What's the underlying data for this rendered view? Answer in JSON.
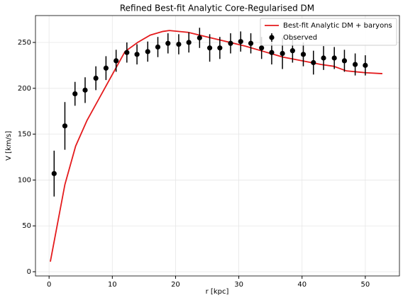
{
  "chart_data": {
    "type": "line",
    "title": "Refined Best-fit Analytic Core-Regularised DM",
    "xlabel": "r [kpc]",
    "ylabel": "V [km/s]",
    "xlim": [
      -2.15,
      55.4
    ],
    "ylim": [
      -4.6,
      279.3
    ],
    "xticks": [
      0,
      10,
      20,
      30,
      40,
      50
    ],
    "yticks": [
      0,
      50,
      100,
      150,
      200,
      250
    ],
    "grid": true,
    "legend": "upper right",
    "series": [
      {
        "name": "Best-fit Analytic DM + baryons",
        "type": "line",
        "color": "#e41a1c",
        "x": [
          0.2,
          2.5,
          4.2,
          6,
          8,
          10,
          12,
          14,
          16,
          18,
          19,
          22,
          25,
          28,
          31,
          34,
          37,
          40,
          43,
          45,
          47,
          50,
          52.7
        ],
        "values": [
          11,
          95,
          137,
          165,
          190,
          215,
          240,
          250,
          258,
          262,
          263,
          261,
          256,
          251,
          246,
          240,
          234,
          230,
          226,
          224,
          219,
          217,
          216
        ]
      },
      {
        "name": "Observed",
        "type": "errorbar",
        "color": "#000000",
        "x": [
          0.8,
          2.5,
          4.1,
          5.7,
          7.4,
          9.0,
          10.6,
          12.3,
          13.9,
          15.6,
          17.2,
          18.8,
          20.5,
          22.1,
          23.8,
          25.4,
          27.0,
          28.7,
          30.3,
          31.9,
          33.6,
          35.2,
          36.9,
          38.5,
          40.2,
          41.8,
          43.4,
          45.1,
          46.7,
          48.4,
          50.0
        ],
        "values": [
          107,
          159,
          194,
          198,
          211,
          222,
          230,
          239,
          237,
          240,
          245,
          249,
          248,
          250,
          255,
          244,
          244,
          249,
          251,
          249,
          244,
          239,
          238,
          241,
          237,
          228,
          233,
          233,
          230,
          226,
          225
        ],
        "errors": [
          25,
          26,
          13,
          14,
          13,
          13,
          12,
          11,
          11,
          11,
          11,
          11,
          11,
          11,
          11,
          15,
          12,
          11,
          11,
          11,
          12,
          13,
          17,
          13,
          13,
          13,
          13,
          12,
          12,
          12,
          11
        ]
      }
    ]
  }
}
